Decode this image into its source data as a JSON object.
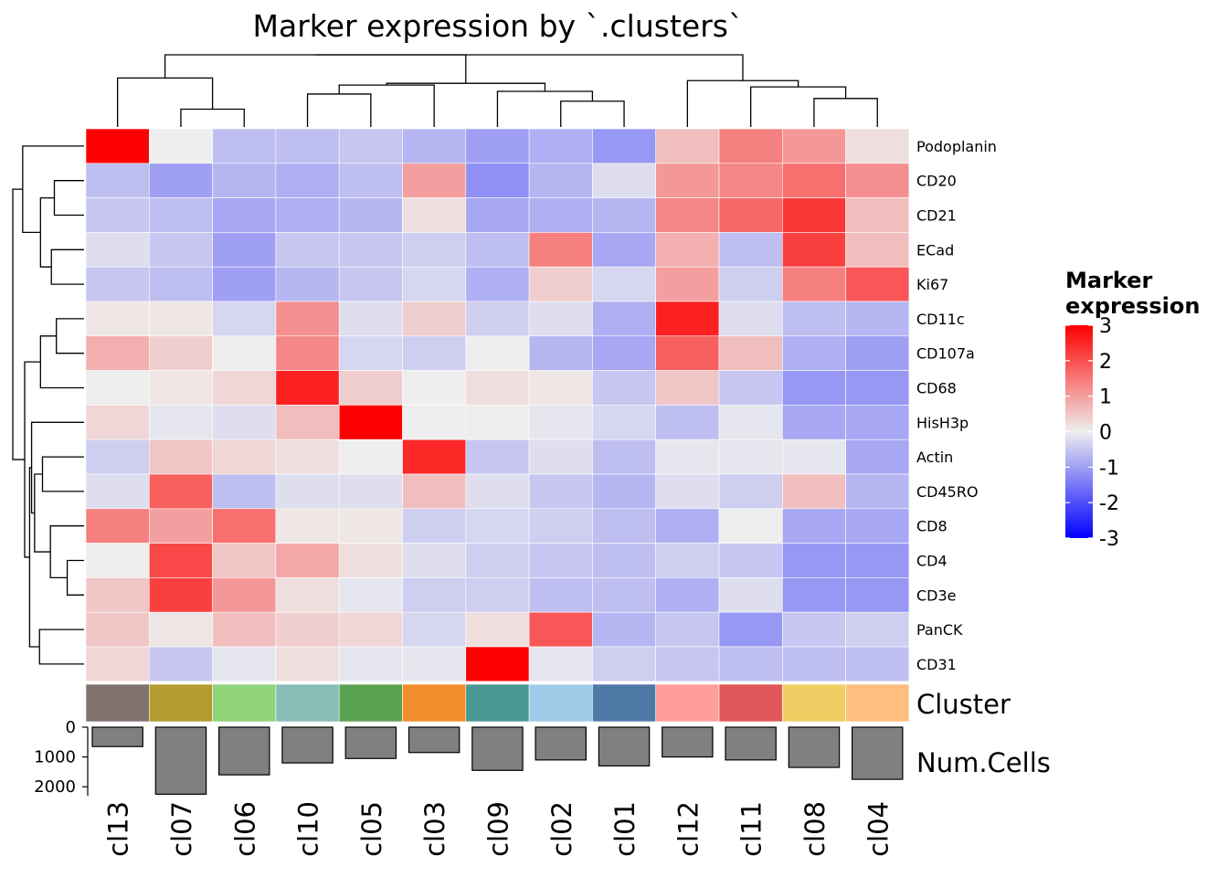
{
  "chart_data": {
    "type": "heatmap",
    "title": "Marker expression by `.clusters`",
    "columns": [
      "cl13",
      "cl07",
      "cl06",
      "cl10",
      "cl05",
      "cl03",
      "cl09",
      "cl02",
      "cl01",
      "cl12",
      "cl11",
      "cl08",
      "cl04"
    ],
    "rows": [
      "Podoplanin",
      "CD20",
      "CD21",
      "ECad",
      "Ki67",
      "CD11c",
      "CD107a",
      "CD68",
      "HisH3p",
      "Actin",
      "CD45RO",
      "CD8",
      "CD4",
      "CD3e",
      "PanCK",
      "CD31"
    ],
    "values": [
      [
        3.0,
        0.0,
        -0.6,
        -0.6,
        -0.5,
        -0.7,
        -1.0,
        -0.8,
        -1.1,
        0.6,
        1.4,
        1.1,
        0.2
      ],
      [
        -0.6,
        -1.0,
        -0.7,
        -0.8,
        -0.6,
        1.0,
        -1.2,
        -0.7,
        -0.2,
        1.1,
        1.3,
        1.6,
        1.2
      ],
      [
        -0.5,
        -0.6,
        -0.9,
        -0.8,
        -0.7,
        0.2,
        -0.9,
        -0.8,
        -0.7,
        1.3,
        1.7,
        2.3,
        0.6
      ],
      [
        -0.2,
        -0.5,
        -1.0,
        -0.5,
        -0.5,
        -0.4,
        -0.6,
        1.4,
        -0.9,
        0.8,
        -0.6,
        2.2,
        0.6
      ],
      [
        -0.5,
        -0.6,
        -1.0,
        -0.7,
        -0.5,
        -0.3,
        -0.8,
        0.4,
        -0.3,
        1.0,
        -0.4,
        1.4,
        1.9
      ],
      [
        0.1,
        0.1,
        -0.3,
        1.2,
        -0.2,
        0.4,
        -0.4,
        -0.2,
        -0.8,
        2.6,
        -0.2,
        -0.6,
        -0.7
      ],
      [
        0.8,
        0.4,
        0.0,
        1.3,
        -0.3,
        -0.4,
        0.0,
        -0.7,
        -0.9,
        1.8,
        0.6,
        -0.8,
        -1.0
      ],
      [
        0.0,
        0.1,
        0.3,
        2.6,
        0.4,
        0.0,
        0.2,
        0.1,
        -0.5,
        0.5,
        -0.5,
        -1.1,
        -1.1
      ],
      [
        0.3,
        -0.1,
        -0.2,
        0.6,
        3.0,
        0.0,
        0.0,
        -0.1,
        -0.3,
        -0.6,
        -0.1,
        -0.9,
        -0.9
      ],
      [
        -0.4,
        0.5,
        0.3,
        0.2,
        0.0,
        2.5,
        -0.5,
        -0.2,
        -0.6,
        -0.1,
        -0.1,
        -0.1,
        -0.9
      ],
      [
        -0.2,
        1.8,
        -0.6,
        -0.2,
        -0.2,
        0.6,
        -0.2,
        -0.5,
        -0.7,
        -0.2,
        -0.4,
        0.6,
        -0.7
      ],
      [
        1.4,
        1.0,
        1.6,
        0.1,
        0.1,
        -0.4,
        -0.3,
        -0.4,
        -0.6,
        -0.8,
        0.0,
        -0.9,
        -0.9
      ],
      [
        0.0,
        2.1,
        0.5,
        0.9,
        0.2,
        -0.2,
        -0.4,
        -0.5,
        -0.6,
        -0.4,
        -0.5,
        -1.1,
        -1.1
      ],
      [
        0.5,
        2.2,
        1.1,
        0.2,
        -0.1,
        -0.4,
        -0.4,
        -0.6,
        -0.6,
        -0.8,
        -0.2,
        -1.1,
        -1.1
      ],
      [
        0.5,
        0.1,
        0.6,
        0.4,
        0.3,
        -0.3,
        0.2,
        1.9,
        -0.7,
        -0.5,
        -1.1,
        -0.5,
        -0.4
      ],
      [
        0.3,
        -0.5,
        -0.1,
        0.2,
        -0.1,
        -0.1,
        3.0,
        -0.1,
        -0.4,
        -0.5,
        -0.6,
        -0.6,
        -0.6
      ]
    ],
    "legend": {
      "title": "Marker\nexpression",
      "ticks": [
        3,
        2,
        1,
        0,
        -1,
        -2,
        -3
      ],
      "colors": {
        "low": "#0000FF",
        "mid": "#EEEEEE",
        "high": "#FF0000"
      },
      "range": [
        -3,
        3
      ],
      "placement": "right"
    },
    "cluster_annotation": {
      "label": "Cluster",
      "colors": [
        "#7F716E",
        "#B59B2F",
        "#8FD47A",
        "#86BDB6",
        "#59A14F",
        "#F28E2B",
        "#499894",
        "#A0CBE8",
        "#4E79A7",
        "#FF9D9A",
        "#E15759",
        "#F1CE63",
        "#FFBE7D"
      ]
    },
    "num_cells": {
      "label": "Num.Cells",
      "ticks": [
        0,
        1000,
        2000
      ],
      "values": [
        650,
        2250,
        1600,
        1200,
        1050,
        850,
        1450,
        1100,
        1300,
        1000,
        1100,
        1350,
        1750
      ],
      "bar_color": "#808080"
    }
  }
}
